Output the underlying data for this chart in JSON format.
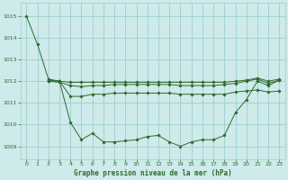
{
  "title": "Graphe pression niveau de la mer (hPa)",
  "bg_color": "#ceeaea",
  "grid_color": "#9ecece",
  "line_color": "#2d6b2d",
  "xlim": [
    -0.5,
    23.5
  ],
  "ylim": [
    1008.4,
    1015.6
  ],
  "yticks": [
    1009,
    1010,
    1011,
    1012,
    1013,
    1014,
    1015
  ],
  "xticks": [
    0,
    1,
    2,
    3,
    4,
    5,
    6,
    7,
    8,
    9,
    10,
    11,
    12,
    13,
    14,
    15,
    16,
    17,
    18,
    19,
    20,
    21,
    22,
    23
  ],
  "series": [
    {
      "x": [
        0,
        1,
        2,
        3,
        4,
        5,
        6,
        7,
        8,
        9,
        10,
        11,
        12,
        13,
        14,
        15,
        16,
        17,
        18,
        19,
        20,
        21,
        22,
        23
      ],
      "y": [
        1015.0,
        1013.7,
        1012.1,
        1012.0,
        1010.1,
        1009.3,
        1009.6,
        1009.2,
        1009.2,
        1009.25,
        1009.3,
        1009.45,
        1009.5,
        1009.2,
        1009.0,
        1009.2,
        1009.3,
        1009.3,
        1009.5,
        1010.55,
        1011.15,
        1012.0,
        1011.8,
        1012.05
      ]
    },
    {
      "x": [
        2,
        3,
        4,
        5,
        6,
        7,
        8,
        9,
        10,
        11,
        12,
        13,
        14,
        15,
        16,
        17,
        18,
        19,
        20,
        21,
        22,
        23
      ],
      "y": [
        1012.0,
        1012.0,
        1011.3,
        1011.3,
        1011.4,
        1011.4,
        1011.45,
        1011.45,
        1011.45,
        1011.45,
        1011.45,
        1011.45,
        1011.4,
        1011.4,
        1011.4,
        1011.4,
        1011.4,
        1011.5,
        1011.55,
        1011.6,
        1011.5,
        1011.55
      ]
    },
    {
      "x": [
        2,
        3,
        4,
        5,
        6,
        7,
        8,
        9,
        10,
        11,
        12,
        13,
        14,
        15,
        16,
        17,
        18,
        19,
        20,
        21,
        22,
        23
      ],
      "y": [
        1012.0,
        1011.95,
        1011.8,
        1011.75,
        1011.8,
        1011.8,
        1011.85,
        1011.85,
        1011.85,
        1011.85,
        1011.85,
        1011.85,
        1011.8,
        1011.8,
        1011.8,
        1011.8,
        1011.85,
        1011.9,
        1012.0,
        1012.1,
        1011.9,
        1012.05
      ]
    },
    {
      "x": [
        2,
        3,
        4,
        5,
        6,
        7,
        8,
        9,
        10,
        11,
        12,
        13,
        14,
        15,
        16,
        17,
        18,
        19,
        20,
        21,
        22,
        23
      ],
      "y": [
        1012.05,
        1012.0,
        1011.95,
        1011.95,
        1011.95,
        1011.95,
        1011.95,
        1011.95,
        1011.95,
        1011.95,
        1011.95,
        1011.95,
        1011.95,
        1011.95,
        1011.95,
        1011.95,
        1011.95,
        1012.0,
        1012.05,
        1012.15,
        1012.0,
        1012.1
      ]
    }
  ]
}
